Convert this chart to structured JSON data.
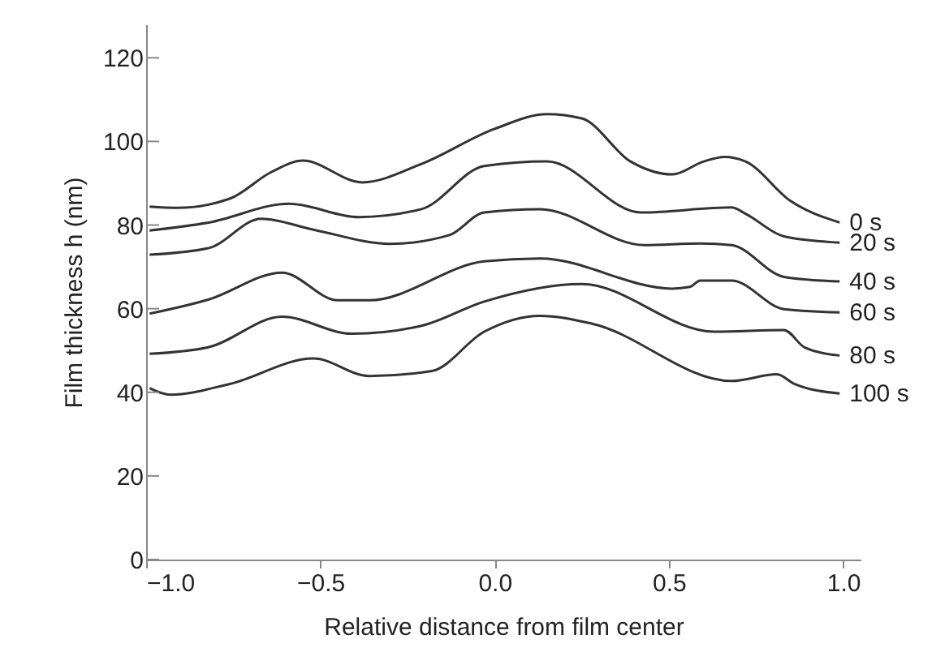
{
  "chart_data": {
    "type": "line",
    "xlabel": "Relative distance from film center",
    "ylabel": "Film thickness h (nm)",
    "xlim": [
      -1.0,
      1.05
    ],
    "ylim": [
      0,
      128
    ],
    "xticks": [
      {
        "value": -1.0,
        "label": "−1.0"
      },
      {
        "value": -0.5,
        "label": "−0.5"
      },
      {
        "value": 0.0,
        "label": "0.0"
      },
      {
        "value": 0.5,
        "label": "0.5"
      },
      {
        "value": 1.0,
        "label": "1.0"
      }
    ],
    "yticks": [
      0,
      20,
      40,
      60,
      80,
      100,
      120
    ],
    "grid": false,
    "marker": "none",
    "line_style": "solid",
    "series": [
      {
        "name": "0 s",
        "color": "#333333",
        "x": [
          -0.99,
          -0.91,
          -0.76,
          -0.64,
          -0.55,
          -0.38,
          -0.21,
          0.0,
          0.15,
          0.25,
          0.39,
          0.51,
          0.6,
          0.66,
          0.72,
          0.85,
          0.99
        ],
        "values": [
          84.4,
          84.1,
          86.3,
          92.7,
          95.4,
          90.2,
          94.6,
          103,
          106.5,
          105.5,
          95.2,
          92.1,
          95.2,
          96.3,
          95.2,
          85.7,
          80.6
        ]
      },
      {
        "name": "20 s",
        "color": "#333333",
        "x": [
          -0.99,
          -0.82,
          -0.59,
          -0.39,
          -0.21,
          -0.03,
          0.15,
          0.42,
          0.68,
          0.72,
          0.83,
          0.99
        ],
        "values": [
          78.7,
          80.6,
          85.1,
          81.9,
          83.8,
          94.1,
          95.2,
          83,
          84.2,
          82.7,
          77.3,
          75.8
        ]
      },
      {
        "name": "40 s",
        "color": "#333333",
        "x": [
          -0.99,
          -0.82,
          -0.67,
          -0.52,
          -0.3,
          -0.13,
          -0.03,
          0.13,
          0.43,
          0.59,
          0.68,
          0.83,
          0.99
        ],
        "values": [
          72.9,
          74.5,
          81.5,
          78.9,
          75.5,
          77.6,
          83,
          83.8,
          75.2,
          75.6,
          75.2,
          67.6,
          66.5
        ]
      },
      {
        "name": "60 s",
        "color": "#333333",
        "x": [
          -0.99,
          -0.82,
          -0.61,
          -0.45,
          -0.36,
          -0.03,
          0.13,
          0.51,
          0.56,
          0.59,
          0.68,
          0.83,
          0.99
        ],
        "values": [
          58.8,
          62.2,
          68.6,
          62.0,
          62.0,
          71.3,
          72,
          64.8,
          65.2,
          66.7,
          66.7,
          59.9,
          59.1
        ]
      },
      {
        "name": "80 s",
        "color": "#333333",
        "x": [
          -0.99,
          -0.82,
          -0.61,
          -0.41,
          -0.21,
          -0.03,
          0.25,
          0.63,
          0.83,
          0.89,
          0.99
        ],
        "values": [
          49.2,
          50.8,
          58.1,
          54.0,
          55.9,
          61.7,
          65.9,
          54.5,
          54.9,
          50.7,
          48.8
        ]
      },
      {
        "name": "100 s",
        "color": "#333333",
        "x": [
          -0.99,
          -0.93,
          -0.76,
          -0.52,
          -0.36,
          -0.18,
          -0.03,
          0.13,
          0.28,
          0.68,
          0.81,
          0.86,
          0.99
        ],
        "values": [
          41.0,
          39.4,
          42.0,
          48.1,
          43.9,
          45.1,
          54.5,
          58.3,
          56.4,
          42.7,
          44.3,
          42.0,
          39.7
        ]
      }
    ]
  }
}
